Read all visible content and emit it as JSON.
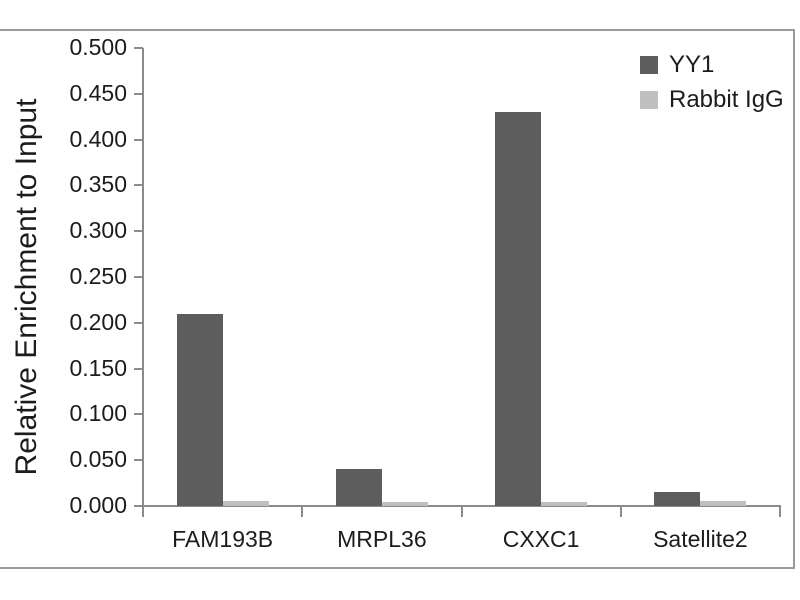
{
  "chart_data": {
    "type": "bar",
    "title": "",
    "xlabel": "",
    "ylabel": "Relative Enrichment to Input",
    "categories": [
      "FAM193B",
      "MRPL36",
      "CXXC1",
      "Satellite2"
    ],
    "series": [
      {
        "name": "YY1",
        "color": "#5d5d5d",
        "values": [
          0.21,
          0.04,
          0.43,
          0.015
        ]
      },
      {
        "name": "Rabbit IgG",
        "color": "#bfbfbf",
        "values": [
          0.005,
          0.004,
          0.004,
          0.005
        ]
      }
    ],
    "ylim": [
      0,
      0.5
    ],
    "ytick_step": 0.05,
    "ytick_labels": [
      "0.000",
      "0.050",
      "0.100",
      "0.150",
      "0.200",
      "0.250",
      "0.300",
      "0.350",
      "0.400",
      "0.450",
      "0.500"
    ],
    "grid": false,
    "legend_position": "top-right"
  },
  "colors": {
    "background": "#ffffff",
    "text": "#1c1c1c",
    "axis": "#8b8b8b",
    "frame": "#9b9b9b"
  }
}
